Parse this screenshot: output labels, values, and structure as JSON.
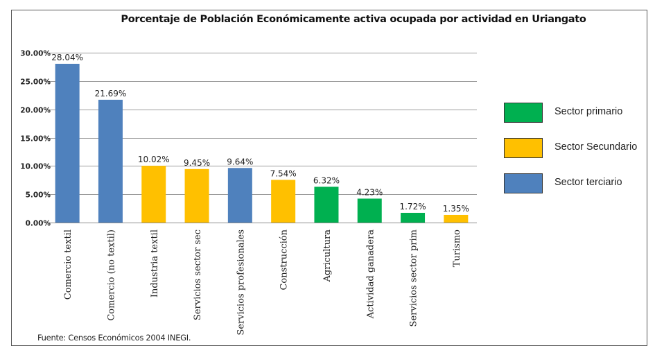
{
  "chart_data": {
    "type": "bar",
    "title": "Porcentaje de Población Económicamente activa ocupada por actividad  en Uriangato",
    "xlabel": "",
    "ylabel": "",
    "ylim": [
      0,
      30
    ],
    "y_ticks": [
      0,
      5,
      10,
      15,
      20,
      25,
      30
    ],
    "y_tick_labels": [
      "0.00%",
      "5.00%",
      "10.00%",
      "15.00%",
      "20.00%",
      "25.00%",
      "30.00%"
    ],
    "grid": true,
    "legend_position": "right",
    "categories": [
      "Comercio textil",
      "Comercio (no textil)",
      "Industria textil",
      "Servicios sector sec",
      "Servicios profesionales",
      "Construcción",
      "Agricultura",
      "Actividad ganadera",
      "Servicios sector prim",
      "Turismo"
    ],
    "values": [
      28.04,
      21.69,
      10.02,
      9.45,
      9.64,
      7.54,
      6.32,
      4.23,
      1.72,
      1.35
    ],
    "value_labels": [
      "28.04%",
      "21.69%",
      "10.02%",
      "9.45%",
      "9.64%",
      "7.54%",
      "6.32%",
      "4.23%",
      "1.72%",
      "1.35%"
    ],
    "sectors": [
      "terciario",
      "terciario",
      "secundario",
      "secundario",
      "terciario",
      "secundario",
      "primario",
      "primario",
      "primario",
      "secundario"
    ],
    "legend": [
      {
        "key": "primario",
        "label": "Sector primario",
        "color": "#00b050"
      },
      {
        "key": "secundario",
        "label": "Sector Secundario",
        "color": "#ffc000"
      },
      {
        "key": "terciario",
        "label": "Sector terciario",
        "color": "#4f81bd"
      }
    ],
    "source": "Fuente: Censos Económicos 2004 INEGI."
  }
}
